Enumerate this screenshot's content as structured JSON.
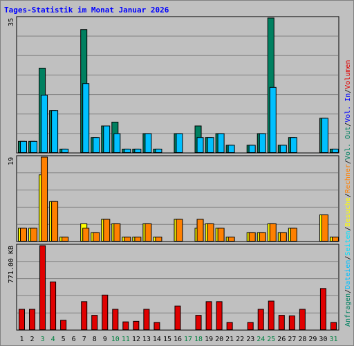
{
  "chart_data": {
    "type": "bar",
    "title": "Tages-Statistik im Monat Januar 2026",
    "x": [
      "1",
      "2",
      "3",
      "4",
      "5",
      "6",
      "7",
      "8",
      "9",
      "10",
      "11",
      "12",
      "13",
      "14",
      "15",
      "16",
      "17",
      "18",
      "19",
      "20",
      "21",
      "22",
      "23",
      "24",
      "25",
      "26",
      "27",
      "28",
      "29",
      "30",
      "31"
    ],
    "weekend_days": [
      "3",
      "4",
      "10",
      "11",
      "17",
      "18",
      "24",
      "25",
      "31"
    ],
    "colors": {
      "background": "#c0c0c0",
      "gridline": "#808080",
      "frame": "#000000",
      "title": "#0000ff",
      "weekday_label": "#000000",
      "weekend_label": "#008040",
      "anfragen": "#008060",
      "dateien": "#00c0ff",
      "seiten": "#00e0ff",
      "besuche": "#ffff00",
      "rechner": "#ff8000",
      "vol_out": "#008060",
      "vol_in": "#0000ff",
      "volumen": "#e00000",
      "separator": "#000000"
    },
    "panels": [
      {
        "name": "hits",
        "ymax_label": "35",
        "ylim": [
          0,
          35
        ],
        "series": [
          {
            "name": "Anfragen",
            "values": [
              3,
              3,
              22,
              11,
              1,
              0,
              32,
              4,
              7,
              8,
              1,
              1,
              5,
              1,
              0,
              5,
              0,
              7,
              4,
              5,
              2,
              0,
              2,
              5,
              35,
              2,
              4,
              0,
              0,
              9,
              1
            ]
          },
          {
            "name": "Dateien",
            "values": [
              3,
              3,
              15,
              11,
              1,
              0,
              18,
              4,
              7,
              5,
              1,
              1,
              5,
              1,
              0,
              5,
              0,
              4,
              4,
              5,
              2,
              0,
              2,
              5,
              17,
              2,
              4,
              0,
              0,
              9,
              1
            ]
          }
        ]
      },
      {
        "name": "visits",
        "ymax_label": "19",
        "ylim": [
          0,
          19
        ],
        "series": [
          {
            "name": "Besuche",
            "values": [
              3,
              3,
              15,
              9,
              1,
              0,
              4,
              2,
              5,
              4,
              1,
              1,
              4,
              1,
              0,
              5,
              0,
              3,
              4,
              3,
              1,
              0,
              2,
              2,
              4,
              2,
              3,
              0,
              0,
              6,
              1
            ]
          },
          {
            "name": "Rechner",
            "values": [
              3,
              3,
              19,
              9,
              1,
              0,
              3,
              2,
              5,
              4,
              1,
              1,
              4,
              1,
              0,
              5,
              0,
              5,
              4,
              3,
              1,
              0,
              2,
              2,
              4,
              2,
              3,
              0,
              0,
              6,
              1
            ]
          }
        ]
      },
      {
        "name": "volume",
        "ymax_label": "771.00 KB",
        "ylim": [
          0,
          771
        ],
        "series": [
          {
            "name": "Volumen",
            "values": [
              190,
              190,
              771,
              440,
              90,
              0,
              260,
              135,
              320,
              190,
              75,
              80,
              190,
              70,
              0,
              220,
              0,
              135,
              260,
              260,
              70,
              0,
              70,
              190,
              265,
              135,
              130,
              190,
              0,
              380,
              70
            ]
          }
        ]
      }
    ],
    "side_labels": [
      {
        "text": "Anfragen",
        "color_key": "anfragen"
      },
      {
        "text": "/",
        "color_key": "separator"
      },
      {
        "text": "Dateien",
        "color_key": "dateien"
      },
      {
        "text": "/",
        "color_key": "separator"
      },
      {
        "text": "Seiten",
        "color_key": "seiten"
      },
      {
        "text": "/",
        "color_key": "separator"
      },
      {
        "text": "Besuche",
        "color_key": "besuche"
      },
      {
        "text": "/",
        "color_key": "separator"
      },
      {
        "text": "Rechner",
        "color_key": "rechner"
      },
      {
        "text": "/",
        "color_key": "separator"
      },
      {
        "text": "Vol. Out",
        "color_key": "vol_out"
      },
      {
        "text": "/",
        "color_key": "separator"
      },
      {
        "text": "Vol. In",
        "color_key": "vol_in"
      },
      {
        "text": "/",
        "color_key": "separator"
      },
      {
        "text": "Volumen",
        "color_key": "volumen"
      }
    ]
  }
}
